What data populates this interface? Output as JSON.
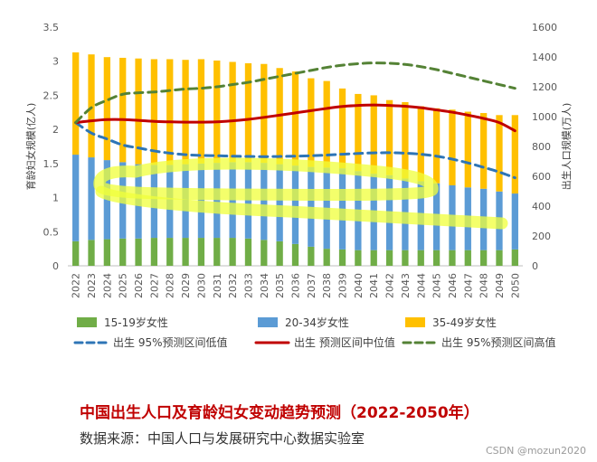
{
  "chart_data": {
    "type": "bar",
    "title": "中国出生人口及育龄妇女变动趋势预测（2022-2050年）",
    "source": "数据来源：中国人口与发展研究中心数据实验室",
    "ylabel_left": "育龄妇女规模(亿人)",
    "ylabel_right": "出生人口规模(万人)",
    "ylim_left": [
      0,
      3.5
    ],
    "yticks_left": [
      "0",
      "0.5",
      "1",
      "1.5",
      "2",
      "2.5",
      "3",
      "3.5"
    ],
    "ylim_right": [
      0,
      1600
    ],
    "yticks_right": [
      "0",
      "200",
      "400",
      "600",
      "800",
      "1000",
      "1200",
      "1400",
      "1600"
    ],
    "grid": false,
    "legend_position": "bottom",
    "categories": [
      "2022",
      "2023",
      "2024",
      "2025",
      "2026",
      "2027",
      "2028",
      "2029",
      "2030",
      "2031",
      "2032",
      "2033",
      "2034",
      "2035",
      "2036",
      "2037",
      "2038",
      "2039",
      "2040",
      "2041",
      "2042",
      "2043",
      "2044",
      "2045",
      "2046",
      "2047",
      "2048",
      "2049",
      "2050"
    ],
    "stacked_bars": [
      {
        "name": "15-19岁女性",
        "color": "#70ad47",
        "values": [
          0.36,
          0.38,
          0.39,
          0.4,
          0.4,
          0.41,
          0.41,
          0.41,
          0.41,
          0.41,
          0.41,
          0.4,
          0.38,
          0.36,
          0.32,
          0.28,
          0.25,
          0.24,
          0.23,
          0.23,
          0.23,
          0.23,
          0.23,
          0.23,
          0.23,
          0.23,
          0.23,
          0.23,
          0.24
        ]
      },
      {
        "name": "20-34岁女性",
        "color": "#5b9bd5",
        "values": [
          1.27,
          1.21,
          1.16,
          1.12,
          1.09,
          1.07,
          1.07,
          1.08,
          1.09,
          1.1,
          1.11,
          1.12,
          1.13,
          1.13,
          1.15,
          1.17,
          1.19,
          1.19,
          1.16,
          1.12,
          1.1,
          1.05,
          1.01,
          0.98,
          0.95,
          0.92,
          0.9,
          0.86,
          0.82
        ]
      },
      {
        "name": "35-49岁女性",
        "color": "#ffc000",
        "values": [
          1.5,
          1.51,
          1.51,
          1.53,
          1.55,
          1.55,
          1.55,
          1.53,
          1.53,
          1.5,
          1.47,
          1.45,
          1.45,
          1.41,
          1.38,
          1.3,
          1.27,
          1.17,
          1.13,
          1.15,
          1.1,
          1.12,
          1.1,
          1.1,
          1.11,
          1.11,
          1.11,
          1.12,
          1.15
        ]
      }
    ],
    "lines": [
      {
        "name": "出生 95%预测区间低值",
        "color": "#2e75b6",
        "style": "dash",
        "axis": "right",
        "values": [
          960,
          890,
          850,
          810,
          790,
          770,
          755,
          745,
          740,
          738,
          735,
          733,
          732,
          733,
          735,
          738,
          742,
          748,
          753,
          757,
          758,
          755,
          748,
          735,
          715,
          690,
          660,
          628,
          590
        ]
      },
      {
        "name": "出生 预测区间中位值",
        "color": "#c00000",
        "style": "solid",
        "axis": "right",
        "values": [
          960,
          972,
          980,
          980,
          975,
          968,
          965,
          963,
          963,
          965,
          972,
          982,
          995,
          1010,
          1025,
          1040,
          1055,
          1068,
          1075,
          1078,
          1075,
          1070,
          1060,
          1045,
          1030,
          1010,
          988,
          960,
          905
        ]
      },
      {
        "name": "出生 95%预测区间高值",
        "color": "#548235",
        "style": "dash",
        "axis": "right",
        "values": [
          960,
          1060,
          1110,
          1150,
          1160,
          1165,
          1175,
          1185,
          1190,
          1200,
          1215,
          1230,
          1250,
          1270,
          1290,
          1310,
          1330,
          1345,
          1355,
          1360,
          1358,
          1350,
          1335,
          1315,
          1290,
          1265,
          1240,
          1215,
          1190
        ]
      }
    ],
    "legend": [
      {
        "key": "bar0",
        "label": "15-19岁女性"
      },
      {
        "key": "bar1",
        "label": "20-34岁女性"
      },
      {
        "key": "bar2",
        "label": "35-49岁女性"
      },
      {
        "key": "line0",
        "label": "出生 95%预测区间低值"
      },
      {
        "key": "line1",
        "label": "出生 预测区间中位值"
      },
      {
        "key": "line2",
        "label": "出生 95%预测区间高值"
      }
    ],
    "highlight_color": "#f0ff3a"
  },
  "watermark": "CSDN @mozun2020"
}
